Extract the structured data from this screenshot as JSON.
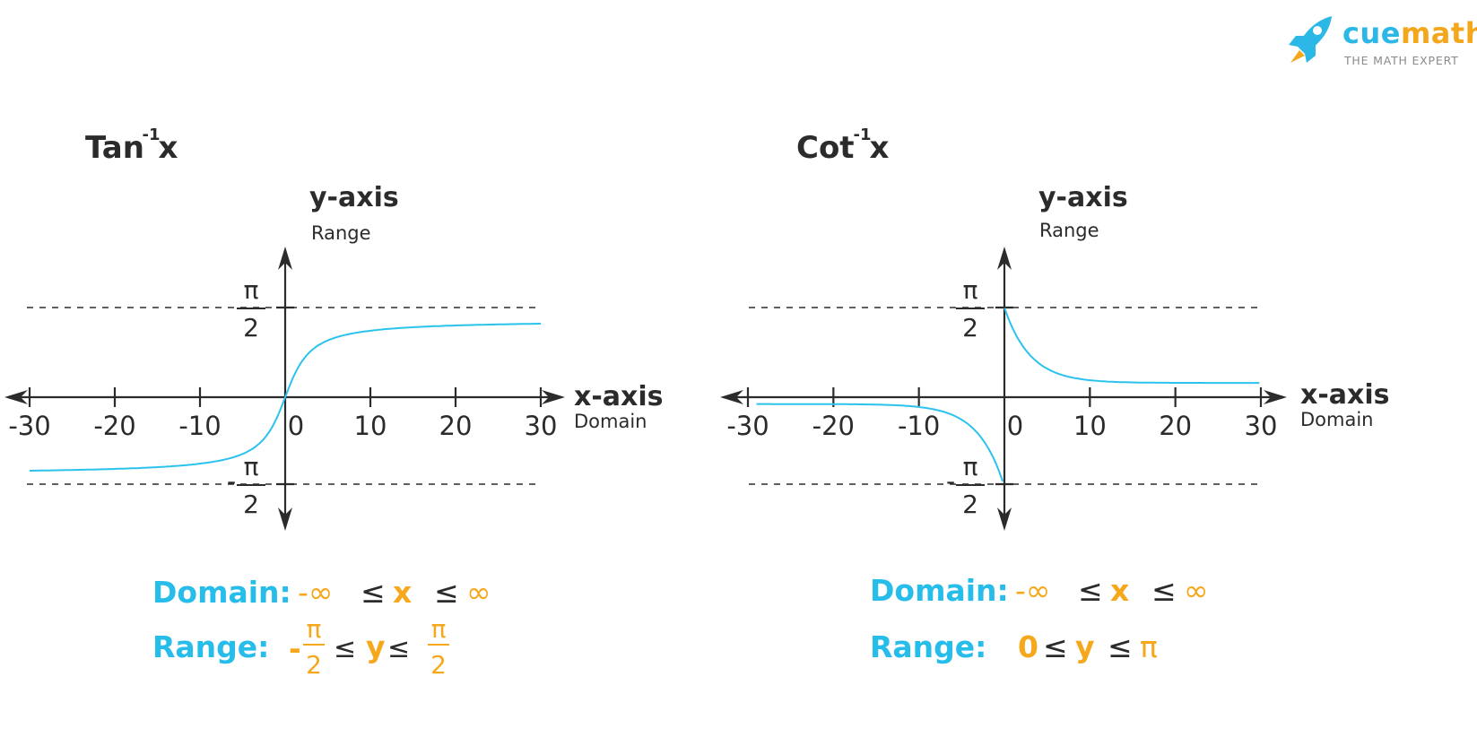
{
  "logo": {
    "brand_part1": "cue",
    "brand_part2": "math",
    "tagline": "THE MATH EXPERT",
    "icon": "rocket-icon"
  },
  "colors": {
    "curve": "#2bc3ee",
    "label_blue": "#27bdea",
    "label_orange": "#f5a81c",
    "axis": "#2b2b2b"
  },
  "chart_data": [
    {
      "type": "line",
      "function": "arctan",
      "title_base": "Tan",
      "title_sup": "-1",
      "title_var": "x",
      "ylabel": "y-axis",
      "ylabel_sub": "Range",
      "xlabel": "x-axis",
      "xlabel_sub": "Domain",
      "xlim": [
        -30,
        30
      ],
      "xticks": [
        -30,
        -20,
        -10,
        0,
        10,
        20,
        30
      ],
      "xtick_labels": [
        "-30",
        "-20",
        "-10",
        "0",
        "10",
        "20",
        "30"
      ],
      "asymptotes": [
        {
          "label_num": "π",
          "label_den": "2",
          "sign": ""
        },
        {
          "label_num": "π",
          "label_den": "2",
          "sign": "-"
        }
      ],
      "domain_label": "Domain:",
      "domain_expr": [
        "-∞",
        " ≤ ",
        "x",
        " ≤ ",
        "∞"
      ],
      "range_label": "Range:",
      "range_expr": {
        "left_sign": "-",
        "left_num": "π",
        "left_den": "2",
        "mid1": " ≤ ",
        "var": "y",
        "mid2": " ≤ ",
        "right_num": "π",
        "right_den": "2"
      }
    },
    {
      "type": "line",
      "function": "arccot",
      "title_base": "Cot",
      "title_sup": "-1",
      "title_var": "x",
      "ylabel": "y-axis",
      "ylabel_sub": "Range",
      "xlabel": "x-axis",
      "xlabel_sub": "Domain",
      "xlim": [
        -30,
        30
      ],
      "xticks": [
        -30,
        -20,
        -10,
        0,
        10,
        20,
        30
      ],
      "xtick_labels": [
        "-30",
        "-20",
        "-10",
        "0",
        "10",
        "20",
        "30"
      ],
      "asymptotes": [
        {
          "label_num": "π",
          "label_den": "2",
          "sign": ""
        },
        {
          "label_num": "π",
          "label_den": "2",
          "sign": "-"
        }
      ],
      "domain_label": "Domain:",
      "domain_expr": [
        "-∞",
        " ≤ ",
        "x",
        " ≤ ",
        "∞"
      ],
      "range_label": "Range:",
      "range_expr": {
        "parts": [
          "0",
          " ≤ ",
          "y",
          " ≤ ",
          "π"
        ]
      }
    }
  ]
}
